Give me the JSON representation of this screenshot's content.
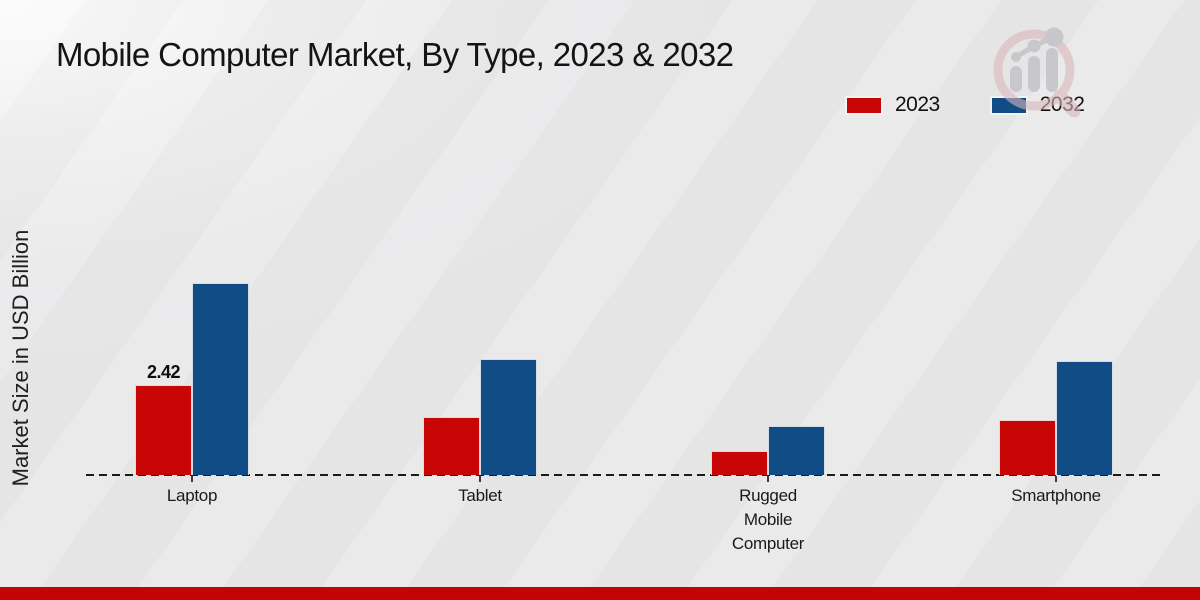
{
  "page": {
    "background": "#e9e9ea",
    "bottom_bar_color": "#c20404"
  },
  "watermark": {
    "name": "magnifier-bar-chart-logo",
    "ring_color": "#d8b6ba",
    "glyph_color": "#c6c6ca"
  },
  "chart_data": {
    "type": "bar",
    "title": "Mobile Computer Market, By Type, 2023 & 2032",
    "xlabel": "",
    "ylabel": "Market Size in USD Billion",
    "categories": [
      "Laptop",
      "Tablet",
      "Rugged Mobile Computer",
      "Smartphone"
    ],
    "category_label_lines": [
      [
        "Laptop"
      ],
      [
        "Tablet"
      ],
      [
        "Rugged",
        "Mobile",
        "Computer"
      ],
      [
        "Smartphone"
      ]
    ],
    "series": [
      {
        "name": "2023",
        "color": "#c90606",
        "values": [
          2.42,
          1.55,
          0.65,
          1.49
        ]
      },
      {
        "name": "2032",
        "color": "#114c86",
        "values": [
          5.15,
          3.12,
          1.32,
          3.06
        ]
      }
    ],
    "bar_labels": [
      {
        "series_index": 0,
        "category_index": 0,
        "text": "2.42"
      }
    ],
    "ylim": [
      0,
      5.6
    ],
    "grid": false,
    "legend_position": "top-right",
    "axis_line_style": "dashed"
  }
}
